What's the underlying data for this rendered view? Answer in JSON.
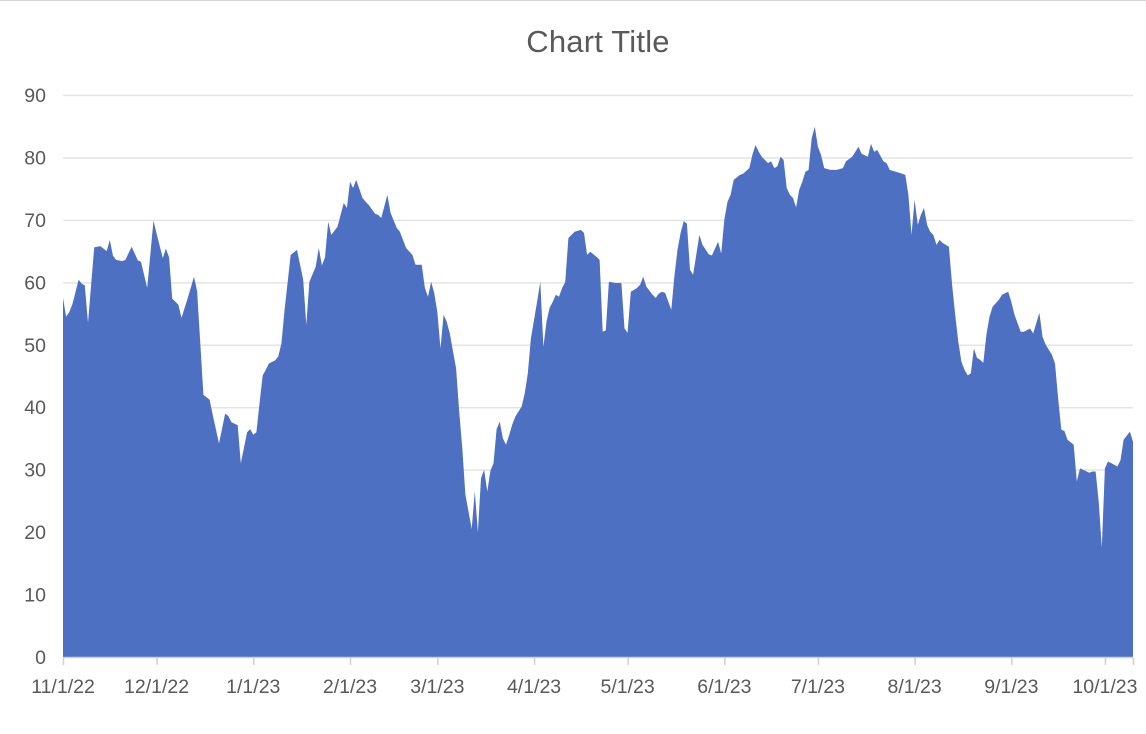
{
  "chart_data": {
    "type": "area",
    "title": "Chart Title",
    "xlabel": "",
    "ylabel": "",
    "ylim": [
      0,
      90
    ],
    "y_ticks": [
      0,
      10,
      20,
      30,
      40,
      50,
      60,
      70,
      80,
      90
    ],
    "x_tick_labels": [
      "11/1/22",
      "12/1/22",
      "1/1/23",
      "2/1/23",
      "3/1/23",
      "4/1/23",
      "5/1/23",
      "6/1/23",
      "7/1/23",
      "8/1/23",
      "9/1/23",
      "10/1/23"
    ],
    "x_tick_days": [
      0,
      30,
      61,
      92,
      120,
      151,
      181,
      212,
      242,
      273,
      304,
      334
    ],
    "x_max_day": 343,
    "grid": true,
    "legend": "none",
    "colors": {
      "area_fill": "#4D70C2",
      "gridline": "#E4E4E4",
      "axis_line": "#D0D0D0",
      "tick_mark": "#CFCFCF",
      "label_text": "#595959",
      "title_text": "#595959",
      "background": "#FFFFFF"
    },
    "points": [
      [
        0,
        57.5
      ],
      [
        1,
        54.5
      ],
      [
        2,
        55.2
      ],
      [
        3,
        56.5
      ],
      [
        5,
        60.4
      ],
      [
        6,
        59.8
      ],
      [
        7,
        59.5
      ],
      [
        8,
        53.5
      ],
      [
        10,
        65.6
      ],
      [
        12,
        65.8
      ],
      [
        14,
        65.0
      ],
      [
        15,
        66.8
      ],
      [
        16,
        64.3
      ],
      [
        17,
        63.6
      ],
      [
        19,
        63.4
      ],
      [
        20,
        63.6
      ],
      [
        22,
        65.7
      ],
      [
        24,
        63.5
      ],
      [
        25,
        63.3
      ],
      [
        27,
        59.1
      ],
      [
        29,
        69.9
      ],
      [
        30,
        67.8
      ],
      [
        32,
        63.9
      ],
      [
        33,
        65.4
      ],
      [
        34,
        64.0
      ],
      [
        35,
        57.4
      ],
      [
        37,
        56.4
      ],
      [
        38,
        54.3
      ],
      [
        40,
        57.5
      ],
      [
        42,
        60.9
      ],
      [
        43,
        58.6
      ],
      [
        44,
        50.2
      ],
      [
        45,
        42.0
      ],
      [
        47,
        41.2
      ],
      [
        48,
        38.8
      ],
      [
        50,
        34.2
      ],
      [
        52,
        39.0
      ],
      [
        53,
        38.6
      ],
      [
        54,
        37.6
      ],
      [
        56,
        37.1
      ],
      [
        57,
        31.0
      ],
      [
        59,
        36.0
      ],
      [
        60,
        36.5
      ],
      [
        61,
        35.6
      ],
      [
        62,
        36.0
      ],
      [
        63,
        40.6
      ],
      [
        64,
        45.1
      ],
      [
        65,
        46.0
      ],
      [
        66,
        47.0
      ],
      [
        68,
        47.5
      ],
      [
        69,
        48.1
      ],
      [
        70,
        50.2
      ],
      [
        71,
        55.5
      ],
      [
        73,
        64.4
      ],
      [
        75,
        65.2
      ],
      [
        77,
        60.4
      ],
      [
        78,
        53.2
      ],
      [
        79,
        60.1
      ],
      [
        81,
        62.5
      ],
      [
        82,
        65.5
      ],
      [
        83,
        62.7
      ],
      [
        84,
        64.0
      ],
      [
        85,
        69.7
      ],
      [
        86,
        67.6
      ],
      [
        88,
        68.9
      ],
      [
        89,
        70.8
      ],
      [
        90,
        72.7
      ],
      [
        91,
        71.9
      ],
      [
        92,
        76.1
      ],
      [
        93,
        75.1
      ],
      [
        94,
        76.4
      ],
      [
        96,
        73.5
      ],
      [
        97,
        72.9
      ],
      [
        98,
        72.4
      ],
      [
        100,
        71.0
      ],
      [
        101,
        70.8
      ],
      [
        102,
        70.3
      ],
      [
        104,
        74.0
      ],
      [
        105,
        71.1
      ],
      [
        107,
        68.7
      ],
      [
        108,
        68.1
      ],
      [
        110,
        65.5
      ],
      [
        112,
        64.4
      ],
      [
        113,
        62.8
      ],
      [
        115,
        62.8
      ],
      [
        116,
        59.1
      ],
      [
        117,
        57.7
      ],
      [
        118,
        60.1
      ],
      [
        119,
        58.3
      ],
      [
        120,
        55.3
      ],
      [
        121,
        49.4
      ],
      [
        122,
        54.8
      ],
      [
        123,
        53.7
      ],
      [
        124,
        51.8
      ],
      [
        126,
        46.2
      ],
      [
        127,
        39.3
      ],
      [
        128,
        33.4
      ],
      [
        129,
        26.0
      ],
      [
        130,
        23.3
      ],
      [
        131,
        20.5
      ],
      [
        132,
        26.5
      ],
      [
        133,
        20.0
      ],
      [
        134,
        28.6
      ],
      [
        135,
        30.0
      ],
      [
        136,
        26.5
      ],
      [
        137,
        29.8
      ],
      [
        138,
        31.0
      ],
      [
        139,
        36.5
      ],
      [
        140,
        37.7
      ],
      [
        141,
        35.0
      ],
      [
        142,
        34.0
      ],
      [
        143,
        35.5
      ],
      [
        144,
        37.2
      ],
      [
        145,
        38.5
      ],
      [
        147,
        40.1
      ],
      [
        148,
        42.2
      ],
      [
        149,
        45.4
      ],
      [
        150,
        51.0
      ],
      [
        152,
        57.0
      ],
      [
        153,
        60.1
      ],
      [
        154,
        49.7
      ],
      [
        155,
        53.7
      ],
      [
        156,
        55.9
      ],
      [
        157,
        56.9
      ],
      [
        158,
        58.0
      ],
      [
        159,
        57.7
      ],
      [
        160,
        59.1
      ],
      [
        161,
        60.0
      ],
      [
        162,
        67.1
      ],
      [
        163,
        67.6
      ],
      [
        164,
        68.1
      ],
      [
        166,
        68.4
      ],
      [
        167,
        67.9
      ],
      [
        168,
        64.4
      ],
      [
        169,
        64.9
      ],
      [
        171,
        64.1
      ],
      [
        172,
        63.6
      ],
      [
        173,
        52.1
      ],
      [
        174,
        52.3
      ],
      [
        175,
        60.1
      ],
      [
        177,
        59.9
      ],
      [
        179,
        59.9
      ],
      [
        180,
        52.6
      ],
      [
        181,
        51.9
      ],
      [
        182,
        58.5
      ],
      [
        184,
        59.1
      ],
      [
        185,
        59.6
      ],
      [
        186,
        60.9
      ],
      [
        187,
        59.3
      ],
      [
        189,
        58.0
      ],
      [
        190,
        57.5
      ],
      [
        191,
        58.2
      ],
      [
        192,
        58.5
      ],
      [
        193,
        58.3
      ],
      [
        195,
        55.6
      ],
      [
        196,
        61.0
      ],
      [
        197,
        65.2
      ],
      [
        198,
        68.0
      ],
      [
        199,
        69.8
      ],
      [
        200,
        69.4
      ],
      [
        201,
        62.0
      ],
      [
        202,
        61.2
      ],
      [
        204,
        67.6
      ],
      [
        205,
        66.0
      ],
      [
        207,
        64.5
      ],
      [
        208,
        64.3
      ],
      [
        210,
        66.5
      ],
      [
        211,
        64.6
      ],
      [
        212,
        70.0
      ],
      [
        213,
        72.9
      ],
      [
        214,
        74.0
      ],
      [
        215,
        76.4
      ],
      [
        217,
        77.2
      ],
      [
        218,
        77.4
      ],
      [
        220,
        78.3
      ],
      [
        221,
        80.4
      ],
      [
        222,
        82.0
      ],
      [
        223,
        80.9
      ],
      [
        224,
        80.1
      ],
      [
        226,
        79.1
      ],
      [
        227,
        79.4
      ],
      [
        228,
        78.3
      ],
      [
        229,
        78.6
      ],
      [
        230,
        80.1
      ],
      [
        231,
        79.6
      ],
      [
        232,
        75.1
      ],
      [
        233,
        74.0
      ],
      [
        234,
        73.5
      ],
      [
        235,
        72.0
      ],
      [
        236,
        74.8
      ],
      [
        237,
        76.1
      ],
      [
        238,
        77.7
      ],
      [
        239,
        78.0
      ],
      [
        240,
        83.1
      ],
      [
        241,
        84.9
      ],
      [
        242,
        81.7
      ],
      [
        243,
        80.4
      ],
      [
        244,
        78.3
      ],
      [
        246,
        78.0
      ],
      [
        248,
        78.0
      ],
      [
        250,
        78.3
      ],
      [
        251,
        79.4
      ],
      [
        253,
        80.1
      ],
      [
        255,
        81.7
      ],
      [
        256,
        80.6
      ],
      [
        258,
        80.1
      ],
      [
        259,
        82.2
      ],
      [
        260,
        80.9
      ],
      [
        261,
        81.2
      ],
      [
        263,
        79.4
      ],
      [
        264,
        79.1
      ],
      [
        265,
        78.0
      ],
      [
        267,
        77.7
      ],
      [
        269,
        77.4
      ],
      [
        270,
        77.2
      ],
      [
        271,
        74.0
      ],
      [
        272,
        67.6
      ],
      [
        273,
        73.2
      ],
      [
        274,
        69.2
      ],
      [
        275,
        70.8
      ],
      [
        276,
        71.9
      ],
      [
        277,
        69.2
      ],
      [
        278,
        68.1
      ],
      [
        279,
        67.6
      ],
      [
        280,
        66.0
      ],
      [
        281,
        66.8
      ],
      [
        282,
        66.3
      ],
      [
        283,
        66.0
      ],
      [
        284,
        65.7
      ],
      [
        285,
        59.6
      ],
      [
        286,
        54.8
      ],
      [
        287,
        50.5
      ],
      [
        288,
        47.3
      ],
      [
        289,
        46.0
      ],
      [
        290,
        45.1
      ],
      [
        291,
        45.4
      ],
      [
        292,
        49.4
      ],
      [
        293,
        47.9
      ],
      [
        294,
        47.6
      ],
      [
        295,
        47.1
      ],
      [
        296,
        51.6
      ],
      [
        297,
        54.5
      ],
      [
        298,
        56.1
      ],
      [
        300,
        57.2
      ],
      [
        301,
        58.0
      ],
      [
        303,
        58.5
      ],
      [
        304,
        56.9
      ],
      [
        305,
        54.8
      ],
      [
        307,
        52.1
      ],
      [
        308,
        52.1
      ],
      [
        310,
        52.6
      ],
      [
        311,
        51.8
      ],
      [
        313,
        55.1
      ],
      [
        314,
        51.3
      ],
      [
        315,
        50.0
      ],
      [
        316,
        49.2
      ],
      [
        317,
        48.4
      ],
      [
        318,
        47.0
      ],
      [
        319,
        41.5
      ],
      [
        320,
        36.4
      ],
      [
        321,
        36.2
      ],
      [
        322,
        34.8
      ],
      [
        324,
        34.0
      ],
      [
        325,
        28.1
      ],
      [
        326,
        30.2
      ],
      [
        327,
        30.0
      ],
      [
        329,
        29.5
      ],
      [
        330,
        29.7
      ],
      [
        331,
        29.7
      ],
      [
        332,
        24.9
      ],
      [
        333,
        17.5
      ],
      [
        334,
        30.2
      ],
      [
        335,
        31.3
      ],
      [
        337,
        30.8
      ],
      [
        338,
        30.5
      ],
      [
        339,
        31.5
      ],
      [
        340,
        34.8
      ],
      [
        342,
        36.1
      ],
      [
        343,
        34.5
      ]
    ]
  }
}
